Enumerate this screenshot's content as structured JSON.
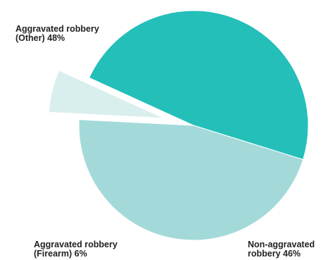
{
  "chart_data": {
    "type": "pie",
    "title": "",
    "slices": [
      {
        "label_line1": "Aggravated robbery",
        "label_line2": "(Other) 48%",
        "category": "Aggravated robbery (Other)",
        "value": 48,
        "color": "#24bfb9",
        "exploded": false
      },
      {
        "label_line1": "Non-aggravated",
        "label_line2": "robbery 46%",
        "category": "Non-aggravated robbery",
        "value": 46,
        "color": "#a3dad9",
        "exploded": false
      },
      {
        "label_line1": "Aggravated robbery",
        "label_line2": "(Firearm) 6%",
        "category": "Aggravated robbery (Firearm)",
        "value": 6,
        "color": "#d9efee",
        "exploded": true
      }
    ]
  }
}
